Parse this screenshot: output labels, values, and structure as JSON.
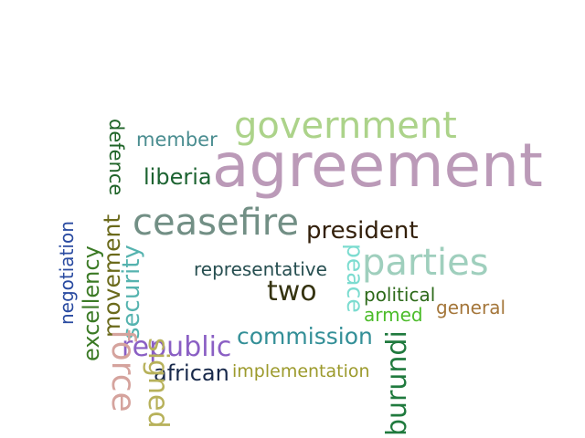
{
  "word_cloud": {
    "words": [
      {
        "text": "agreement",
        "color": "#bb9ab8",
        "orientation": "horizontal"
      },
      {
        "text": "government",
        "color": "#acd38a",
        "orientation": "horizontal"
      },
      {
        "text": "ceasefire",
        "color": "#728f85",
        "orientation": "horizontal"
      },
      {
        "text": "parties",
        "color": "#9fcfbd",
        "orientation": "horizontal"
      },
      {
        "text": "president",
        "color": "#33200b",
        "orientation": "horizontal"
      },
      {
        "text": "two",
        "color": "#353310",
        "orientation": "horizontal"
      },
      {
        "text": "member",
        "color": "#4a8d90",
        "orientation": "horizontal"
      },
      {
        "text": "liberia",
        "color": "#1c6331",
        "orientation": "horizontal"
      },
      {
        "text": "representative",
        "color": "#264e50",
        "orientation": "horizontal"
      },
      {
        "text": "political",
        "color": "#2d6a1a",
        "orientation": "horizontal"
      },
      {
        "text": "armed",
        "color": "#4cbc2a",
        "orientation": "horizontal"
      },
      {
        "text": "general",
        "color": "#a4763a",
        "orientation": "horizontal"
      },
      {
        "text": "commission",
        "color": "#338f97",
        "orientation": "horizontal"
      },
      {
        "text": "republic",
        "color": "#8a5fc4",
        "orientation": "horizontal"
      },
      {
        "text": "african",
        "color": "#17284a",
        "orientation": "horizontal"
      },
      {
        "text": "implementation",
        "color": "#9c9a2c",
        "orientation": "horizontal"
      },
      {
        "text": "defence",
        "color": "#1f6428",
        "orientation": "vertical-down"
      },
      {
        "text": "negotiation",
        "color": "#2a4ba1",
        "orientation": "vertical-up"
      },
      {
        "text": "excellency",
        "color": "#3b7a25",
        "orientation": "vertical-up"
      },
      {
        "text": "movement",
        "color": "#6b6a1c",
        "orientation": "vertical-up"
      },
      {
        "text": "security",
        "color": "#55b3af",
        "orientation": "vertical-up"
      },
      {
        "text": "force",
        "color": "#d5a39d",
        "orientation": "vertical-down"
      },
      {
        "text": "signed",
        "color": "#b7b15a",
        "orientation": "vertical-down"
      },
      {
        "text": "peace",
        "color": "#7cdcd0",
        "orientation": "vertical-down"
      },
      {
        "text": "burundi",
        "color": "#207a3e",
        "orientation": "vertical-up"
      }
    ]
  }
}
